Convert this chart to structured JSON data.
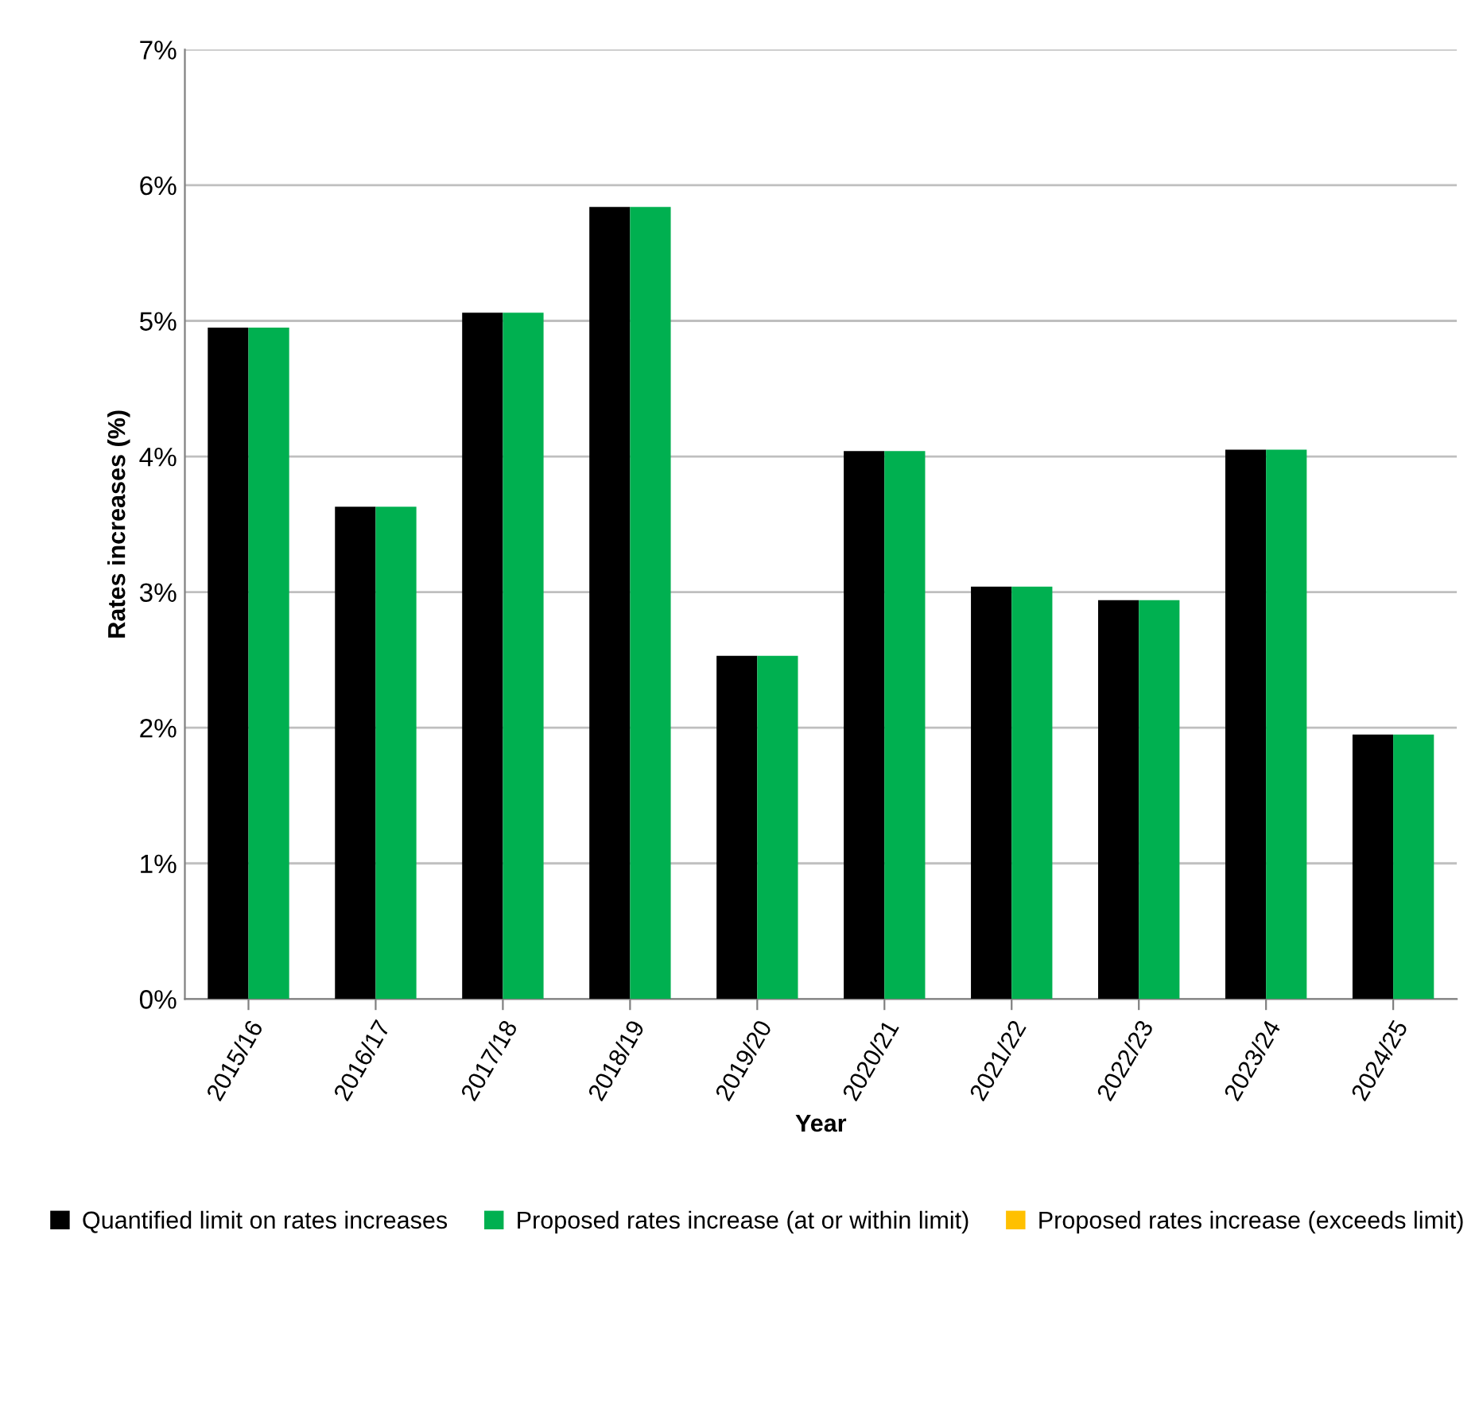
{
  "chart_data": {
    "type": "bar",
    "xlabel": "Year",
    "ylabel": "Rates increases (%)",
    "categories": [
      "2015/16",
      "2016/17",
      "2017/18",
      "2018/19",
      "2019/20",
      "2020/21",
      "2021/22",
      "2022/23",
      "2023/24",
      "2024/25"
    ],
    "series": [
      {
        "name": "Quantified limit on rates increases",
        "color": "#000000",
        "values": [
          4.95,
          3.63,
          5.06,
          5.84,
          2.53,
          4.04,
          3.04,
          2.94,
          4.05,
          1.95
        ]
      },
      {
        "name": "Proposed rates increase (at or within limit)",
        "color": "#00b050",
        "values": [
          4.95,
          3.63,
          5.06,
          5.84,
          2.53,
          4.04,
          3.04,
          2.94,
          4.05,
          1.95
        ]
      },
      {
        "name": "Proposed rates increase (exceeds limit)",
        "color": "#ffc000",
        "values": [
          null,
          null,
          null,
          null,
          null,
          null,
          null,
          null,
          null,
          null
        ]
      }
    ],
    "ylim": [
      0,
      7
    ],
    "yticks": [
      {
        "value": 0,
        "label": "0%"
      },
      {
        "value": 1,
        "label": "1%"
      },
      {
        "value": 2,
        "label": "2%"
      },
      {
        "value": 3,
        "label": "3%"
      },
      {
        "value": 4,
        "label": "4%"
      },
      {
        "value": 5,
        "label": "5%"
      },
      {
        "value": 6,
        "label": "6%"
      },
      {
        "value": 7,
        "label": "7%"
      }
    ],
    "grid": "y",
    "legend": "bottom"
  }
}
